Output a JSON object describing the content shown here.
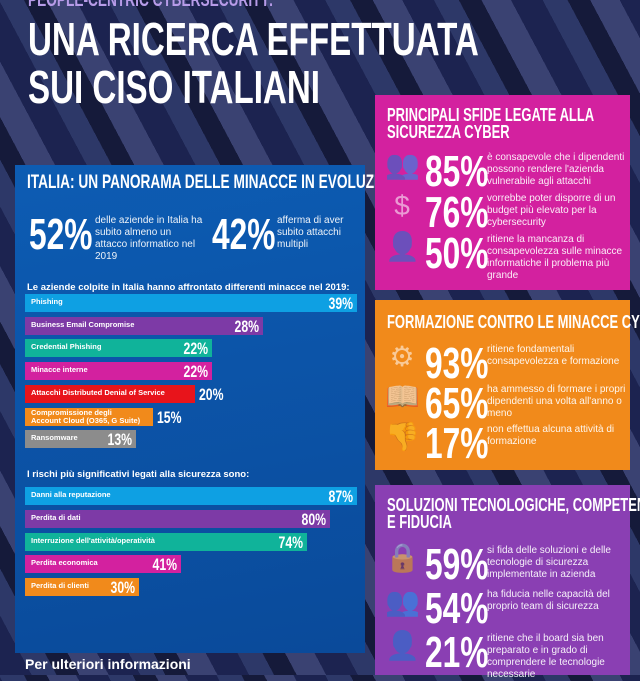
{
  "header": {
    "kicker": "PEOPLE-CENTRIC CYBERSECURITY:",
    "title_line1": "UNA RICERCA EFFETTUATA",
    "title_line2": "SUI CISO ITALIANI"
  },
  "italy": {
    "title": "ITALIA: UN PANORAMA DELLE MINACCE IN EVOLUZIONE",
    "stats": [
      {
        "value": "52%",
        "text": "delle aziende in Italia ha subito almeno un attacco informatico nel 2019"
      },
      {
        "value": "42%",
        "text": "afferma di aver subito attacchi multipli"
      }
    ]
  },
  "chart_data": [
    {
      "type": "bar",
      "orientation": "horizontal",
      "title": "Le aziende colpite in Italia hanno affrontato differenti minacce nel 2019:",
      "categories": [
        "Phishing",
        "Business Email Compromise",
        "Credential Phishing",
        "Minacce interne",
        "Attacchi Distributed Denial of Service",
        "Compromissione degli Account Cloud (O365, G Suite)",
        "Ransomware"
      ],
      "values": [
        39,
        28,
        22,
        22,
        20,
        15,
        13
      ],
      "labels": [
        "39%",
        "28%",
        "22%",
        "22%",
        "20%",
        "15%",
        "13%"
      ],
      "colors": [
        "#0ea0e3",
        "#7d3aa6",
        "#10b39a",
        "#d3219f",
        "#e8141b",
        "#f18a1b",
        "#8c8c8c"
      ]
    },
    {
      "type": "bar",
      "orientation": "horizontal",
      "title": "I rischi più significativi legati alla sicurezza sono:",
      "categories": [
        "Danni alla reputazione",
        "Perdita di dati",
        "Interruzione dell'attività/operatività",
        "Perdita economica",
        "Perdita di clienti"
      ],
      "values": [
        87,
        80,
        74,
        41,
        30
      ],
      "labels": [
        "87%",
        "80%",
        "74%",
        "41%",
        "30%"
      ],
      "colors": [
        "#0ea0e3",
        "#7d3aa6",
        "#10b39a",
        "#d3219f",
        "#f18a1b"
      ]
    }
  ],
  "challenges": {
    "title": "PRINCIPALI SFIDE LEGATE ALLA SICUREZZA CYBER",
    "color": "#d3219f",
    "items": [
      {
        "icon": "users-icon",
        "value": "85%",
        "text": "è consapevole che i dipendenti possono rendere l'azienda vulnerabile agli attacchi"
      },
      {
        "icon": "money-bag-icon",
        "value": "76%",
        "text": "vorrebbe poter disporre di un budget più elevato per la cybersecurity"
      },
      {
        "icon": "user-alert-icon",
        "value": "50%",
        "text": "ritiene la mancanza di consapevolezza sulle minacce informatiche il problema più grande"
      }
    ]
  },
  "training": {
    "title": "FORMAZIONE CONTRO LE MINACCE CYBER",
    "color": "#f18a1b",
    "items": [
      {
        "icon": "head-gears-icon",
        "value": "93%",
        "text": "ritiene fondamentali consapevolezza e formazione"
      },
      {
        "icon": "book-icon",
        "value": "65%",
        "text": "ha ammesso di formare i propri dipendenti una volta all'anno o meno"
      },
      {
        "icon": "thumbs-down-icon",
        "value": "17%",
        "text": "non effettua alcuna attività di formazione"
      }
    ]
  },
  "solutions": {
    "title_line1": "SOLUZIONI TECNOLOGICHE, COMPETENZE",
    "title_line2": "E FIDUCIA",
    "color": "#8a3fb3",
    "items": [
      {
        "icon": "lock-icon",
        "value": "59%",
        "text": "si fida delle soluzioni e delle tecnologie di sicurezza implementate in azienda"
      },
      {
        "icon": "team-icon",
        "value": "54%",
        "text": "ha fiducia nelle capacità del proprio team di sicurezza"
      },
      {
        "icon": "businessman-icon",
        "value": "21%",
        "text": "ritiene che il board sia ben preparato e in grado di comprendere le tecnologie necessarie"
      }
    ]
  },
  "footer": {
    "text": "Per ulteriori informazioni"
  }
}
